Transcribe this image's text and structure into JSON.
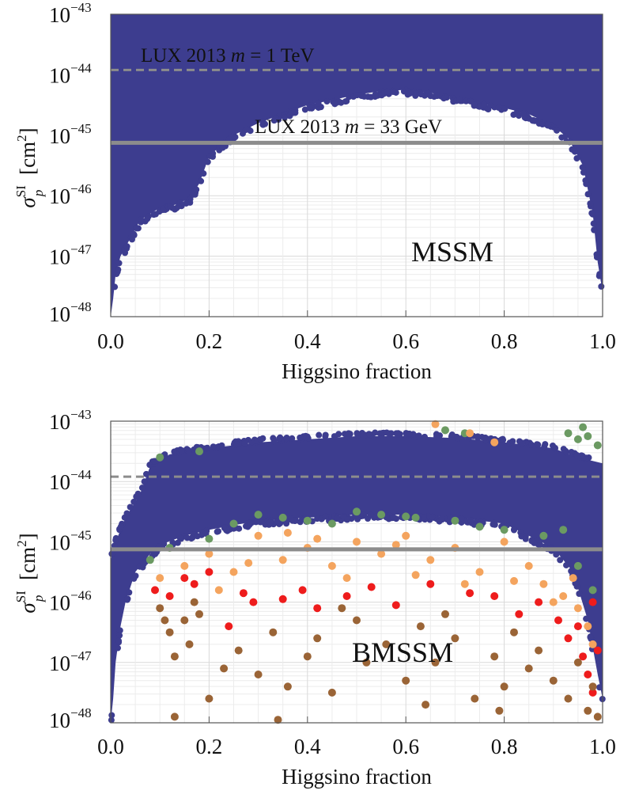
{
  "chart_data": [
    {
      "type": "scatter",
      "panel_label": "MSSM",
      "xlabel": "Higgsino fraction",
      "ylabel_symbol": "σ",
      "ylabel_sup": "SI",
      "ylabel_sub": "p",
      "ylabel_unit": "[cm",
      "ylabel_unit_sup": "2",
      "ylabel_unit_close": "]",
      "xlim": [
        0.0,
        1.0
      ],
      "ylim": [
        1e-48,
        1e-43
      ],
      "yscale": "log",
      "grid": true,
      "x_ticks": [
        "0.0",
        "0.2",
        "0.4",
        "0.6",
        "0.8",
        "1.0"
      ],
      "y_ticks": [
        {
          "base": "10",
          "exp": "−43"
        },
        {
          "base": "10",
          "exp": "−44"
        },
        {
          "base": "10",
          "exp": "−45"
        },
        {
          "base": "10",
          "exp": "−46"
        },
        {
          "base": "10",
          "exp": "−47"
        },
        {
          "base": "10",
          "exp": "−48"
        }
      ],
      "lines": [
        {
          "label_prefix": "LUX 2013 ",
          "label_var": "m",
          "label_suffix": " = 1 TeV",
          "y": 1.2e-44,
          "style": "dashed",
          "color": "#8c8c8c"
        },
        {
          "label_prefix": "LUX 2013 ",
          "label_var": "m",
          "label_suffix": " = 33 GeV",
          "y": 7.5e-46,
          "style": "solid",
          "color": "#8c8c8c"
        }
      ],
      "region": {
        "color": "#3d3d8f",
        "description": "filled scatter region; lower envelope (x, log10 sigma)",
        "lower_envelope": [
          [
            0.0,
            -48
          ],
          [
            0.005,
            -47.7
          ],
          [
            0.01,
            -47.3
          ],
          [
            0.02,
            -47.0
          ],
          [
            0.04,
            -46.7
          ],
          [
            0.06,
            -46.4
          ],
          [
            0.08,
            -46.3
          ],
          [
            0.1,
            -46.2
          ],
          [
            0.13,
            -46.15
          ],
          [
            0.16,
            -46.05
          ],
          [
            0.18,
            -45.8
          ],
          [
            0.2,
            -45.35
          ],
          [
            0.22,
            -45.2
          ],
          [
            0.25,
            -45.0
          ],
          [
            0.3,
            -44.8
          ],
          [
            0.35,
            -44.65
          ],
          [
            0.4,
            -44.5
          ],
          [
            0.45,
            -44.42
          ],
          [
            0.5,
            -44.33
          ],
          [
            0.55,
            -44.27
          ],
          [
            0.6,
            -44.25
          ],
          [
            0.65,
            -44.3
          ],
          [
            0.7,
            -44.38
          ],
          [
            0.75,
            -44.47
          ],
          [
            0.8,
            -44.55
          ],
          [
            0.85,
            -44.65
          ],
          [
            0.9,
            -44.85
          ],
          [
            0.93,
            -45.05
          ],
          [
            0.96,
            -45.5
          ],
          [
            0.98,
            -46.3
          ],
          [
            0.99,
            -47.1
          ],
          [
            1.0,
            -47.6
          ]
        ]
      }
    },
    {
      "type": "scatter",
      "panel_label": "BMSSM",
      "xlabel": "Higgsino fraction",
      "ylabel_symbol": "σ",
      "ylabel_sup": "SI",
      "ylabel_sub": "p",
      "ylabel_unit": "[cm",
      "ylabel_unit_sup": "2",
      "ylabel_unit_close": "]",
      "xlim": [
        0.0,
        1.0
      ],
      "ylim": [
        1e-48,
        1e-43
      ],
      "yscale": "log",
      "grid": true,
      "x_ticks": [
        "0.0",
        "0.2",
        "0.4",
        "0.6",
        "0.8",
        "1.0"
      ],
      "y_ticks": [
        {
          "base": "10",
          "exp": "−43"
        },
        {
          "base": "10",
          "exp": "−44"
        },
        {
          "base": "10",
          "exp": "−45"
        },
        {
          "base": "10",
          "exp": "−46"
        },
        {
          "base": "10",
          "exp": "−47"
        },
        {
          "base": "10",
          "exp": "−48"
        }
      ],
      "lines": [
        {
          "y": 1.2e-44,
          "style": "dashed",
          "color": "#8c8c8c"
        },
        {
          "y": 7.5e-46,
          "style": "solid",
          "color": "#8c8c8c"
        }
      ],
      "region": {
        "color": "#3d3d8f",
        "upper_envelope": [
          [
            0.0,
            -45.3
          ],
          [
            0.01,
            -45.0
          ],
          [
            0.03,
            -44.6
          ],
          [
            0.06,
            -44.2
          ],
          [
            0.08,
            -43.75
          ],
          [
            0.12,
            -43.55
          ],
          [
            0.2,
            -43.45
          ],
          [
            0.3,
            -43.35
          ],
          [
            0.4,
            -43.3
          ],
          [
            0.5,
            -43.25
          ],
          [
            0.6,
            -43.25
          ],
          [
            0.7,
            -43.28
          ],
          [
            0.8,
            -43.35
          ],
          [
            0.9,
            -43.45
          ],
          [
            0.95,
            -43.6
          ],
          [
            1.0,
            -43.7
          ]
        ],
        "lower_envelope": [
          [
            0.0,
            -48
          ],
          [
            0.005,
            -47.6
          ],
          [
            0.01,
            -47.0
          ],
          [
            0.02,
            -46.4
          ],
          [
            0.03,
            -46.0
          ],
          [
            0.05,
            -45.5
          ],
          [
            0.08,
            -45.2
          ],
          [
            0.1,
            -45.05
          ],
          [
            0.15,
            -44.9
          ],
          [
            0.2,
            -44.8
          ],
          [
            0.3,
            -44.65
          ],
          [
            0.4,
            -44.6
          ],
          [
            0.5,
            -44.55
          ],
          [
            0.6,
            -44.55
          ],
          [
            0.7,
            -44.6
          ],
          [
            0.8,
            -44.7
          ],
          [
            0.85,
            -44.9
          ],
          [
            0.9,
            -45.1
          ],
          [
            0.94,
            -45.5
          ],
          [
            0.97,
            -46.3
          ],
          [
            0.99,
            -47.2
          ],
          [
            1.0,
            -47.6
          ]
        ]
      },
      "series": [
        {
          "color": "#6b9a62",
          "points": [
            [
              0.1,
              -43.6
            ],
            [
              0.18,
              -43.5
            ],
            [
              0.3,
              -44.55
            ],
            [
              0.35,
              -44.6
            ],
            [
              0.45,
              -44.7
            ],
            [
              0.5,
              -44.5
            ],
            [
              0.55,
              -44.55
            ],
            [
              0.6,
              -44.58
            ],
            [
              0.62,
              -44.6
            ],
            [
              0.7,
              -44.65
            ],
            [
              0.75,
              -44.75
            ],
            [
              0.8,
              -44.8
            ],
            [
              0.88,
              -44.9
            ],
            [
              0.92,
              -44.8
            ],
            [
              0.68,
              -43.15
            ],
            [
              0.72,
              -43.2
            ],
            [
              0.93,
              -43.2
            ],
            [
              0.95,
              -43.3
            ],
            [
              0.97,
              -43.25
            ],
            [
              0.99,
              -43.4
            ],
            [
              0.96,
              -43.1
            ],
            [
              0.12,
              -45.1
            ],
            [
              0.2,
              -44.95
            ],
            [
              0.08,
              -45.3
            ],
            [
              0.95,
              -45.4
            ],
            [
              0.98,
              -45.8
            ],
            [
              0.25,
              -44.7
            ],
            [
              0.4,
              -44.65
            ]
          ]
        },
        {
          "color": "#f4a45e",
          "points": [
            [
              0.1,
              -45.6
            ],
            [
              0.15,
              -45.4
            ],
            [
              0.2,
              -45.2
            ],
            [
              0.25,
              -45.5
            ],
            [
              0.3,
              -44.9
            ],
            [
              0.35,
              -45.3
            ],
            [
              0.4,
              -45.1
            ],
            [
              0.45,
              -45.4
            ],
            [
              0.5,
              -45.0
            ],
            [
              0.55,
              -45.2
            ],
            [
              0.6,
              -44.9
            ],
            [
              0.65,
              -45.3
            ],
            [
              0.7,
              -45.1
            ],
            [
              0.75,
              -45.5
            ],
            [
              0.8,
              -45.0
            ],
            [
              0.85,
              -45.4
            ],
            [
              0.88,
              -45.7
            ],
            [
              0.92,
              -45.9
            ],
            [
              0.95,
              -46.1
            ],
            [
              0.97,
              -46.4
            ],
            [
              0.98,
              -46.7
            ],
            [
              0.22,
              -45.8
            ],
            [
              0.48,
              -45.6
            ],
            [
              0.62,
              -45.55
            ],
            [
              0.72,
              -45.7
            ],
            [
              0.82,
              -45.65
            ],
            [
              0.66,
              -43.05
            ],
            [
              0.73,
              -43.2
            ],
            [
              0.78,
              -43.35
            ],
            [
              0.42,
              -44.95
            ],
            [
              0.36,
              -44.85
            ],
            [
              0.58,
              -45.05
            ],
            [
              0.28,
              -45.35
            ],
            [
              0.9,
              -46.0
            ],
            [
              0.94,
              -45.6
            ]
          ]
        },
        {
          "color": "#ee1c1c",
          "points": [
            [
              0.09,
              -45.8
            ],
            [
              0.12,
              -45.9
            ],
            [
              0.15,
              -45.6
            ],
            [
              0.17,
              -45.7
            ],
            [
              0.2,
              -45.5
            ],
            [
              0.27,
              -45.85
            ],
            [
              0.29,
              -46.0
            ],
            [
              0.35,
              -45.95
            ],
            [
              0.39,
              -45.8
            ],
            [
              0.48,
              -45.9
            ],
            [
              0.53,
              -45.75
            ],
            [
              0.58,
              -46.05
            ],
            [
              0.65,
              -45.7
            ],
            [
              0.73,
              -45.85
            ],
            [
              0.78,
              -45.9
            ],
            [
              0.83,
              -46.2
            ],
            [
              0.87,
              -46.0
            ],
            [
              0.91,
              -46.3
            ],
            [
              0.93,
              -46.6
            ],
            [
              0.95,
              -46.4
            ],
            [
              0.96,
              -46.9
            ],
            [
              0.97,
              -47.2
            ],
            [
              0.98,
              -47.5
            ],
            [
              0.99,
              -46.8
            ],
            [
              0.98,
              -46.0
            ],
            [
              0.24,
              -46.4
            ],
            [
              0.42,
              -46.1
            ]
          ]
        },
        {
          "color": "#9a6436",
          "points": [
            [
              0.1,
              -46.1
            ],
            [
              0.12,
              -46.5
            ],
            [
              0.13,
              -46.9
            ],
            [
              0.15,
              -46.3
            ],
            [
              0.16,
              -46.7
            ],
            [
              0.18,
              -46.2
            ],
            [
              0.2,
              -47.6
            ],
            [
              0.23,
              -47.1
            ],
            [
              0.26,
              -46.8
            ],
            [
              0.3,
              -47.2
            ],
            [
              0.33,
              -46.5
            ],
            [
              0.36,
              -47.4
            ],
            [
              0.4,
              -46.9
            ],
            [
              0.42,
              -46.6
            ],
            [
              0.45,
              -47.5
            ],
            [
              0.5,
              -46.3
            ],
            [
              0.52,
              -47.0
            ],
            [
              0.56,
              -46.7
            ],
            [
              0.6,
              -47.3
            ],
            [
              0.63,
              -46.4
            ],
            [
              0.66,
              -47.0
            ],
            [
              0.7,
              -46.6
            ],
            [
              0.74,
              -47.6
            ],
            [
              0.78,
              -46.9
            ],
            [
              0.8,
              -47.4
            ],
            [
              0.82,
              -46.5
            ],
            [
              0.85,
              -47.1
            ],
            [
              0.87,
              -46.8
            ],
            [
              0.9,
              -47.3
            ],
            [
              0.93,
              -47.6
            ],
            [
              0.95,
              -47.0
            ],
            [
              0.97,
              -47.8
            ],
            [
              0.98,
              -47.4
            ],
            [
              0.99,
              -47.9
            ],
            [
              0.13,
              -47.9
            ],
            [
              0.34,
              -47.95
            ],
            [
              0.64,
              -47.7
            ],
            [
              0.79,
              -47.8
            ],
            [
              0.11,
              -46.3
            ],
            [
              0.17,
              -46.0
            ],
            [
              0.47,
              -46.1
            ],
            [
              0.68,
              -46.2
            ]
          ]
        }
      ]
    }
  ]
}
